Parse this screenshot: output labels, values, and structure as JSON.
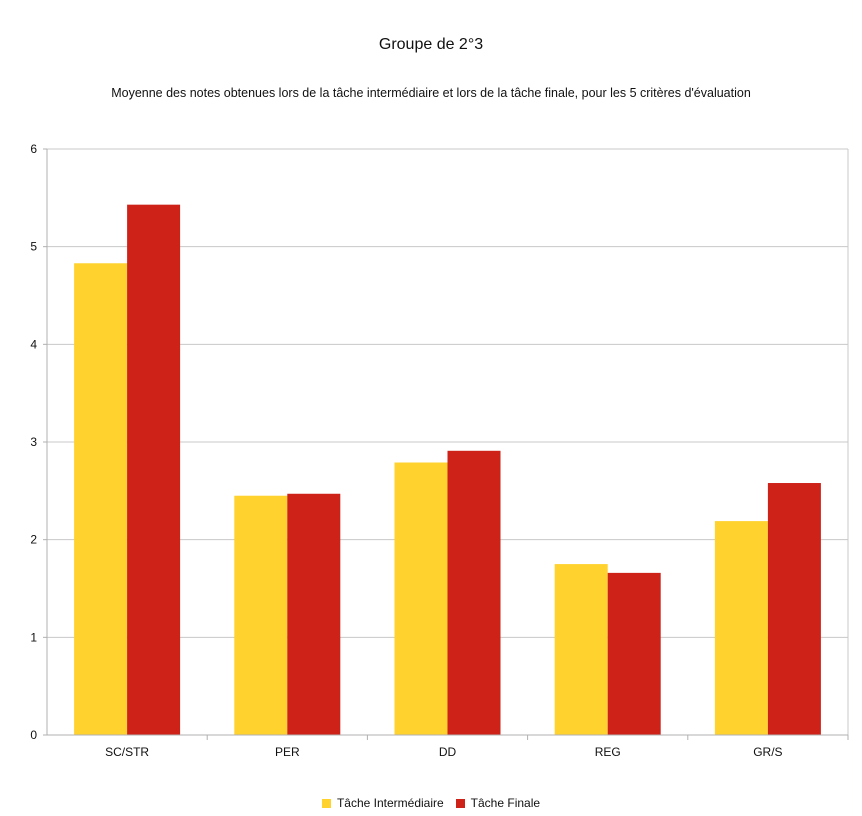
{
  "chart_data": {
    "type": "bar",
    "title": "Groupe de 2°3",
    "subtitle": "Moyenne des notes obtenues lors de la tâche intermédiaire et lors de la tâche finale, pour les 5 critères d'évaluation",
    "categories": [
      "SC/STR",
      "PER",
      "DD",
      "REG",
      "GR/S"
    ],
    "series": [
      {
        "name": "Tâche Intermédiaire",
        "color": "#FFD22E",
        "values": [
          4.83,
          2.45,
          2.79,
          1.75,
          2.19
        ]
      },
      {
        "name": "Tâche Finale",
        "color": "#CE2218",
        "values": [
          5.43,
          2.47,
          2.91,
          1.66,
          2.58
        ]
      }
    ],
    "y_ticks": [
      "0",
      "1",
      "2",
      "3",
      "4",
      "5",
      "6"
    ],
    "ylim": [
      0,
      6
    ],
    "xlabel": "",
    "ylabel": "",
    "grid": true,
    "legend_position": "bottom"
  }
}
